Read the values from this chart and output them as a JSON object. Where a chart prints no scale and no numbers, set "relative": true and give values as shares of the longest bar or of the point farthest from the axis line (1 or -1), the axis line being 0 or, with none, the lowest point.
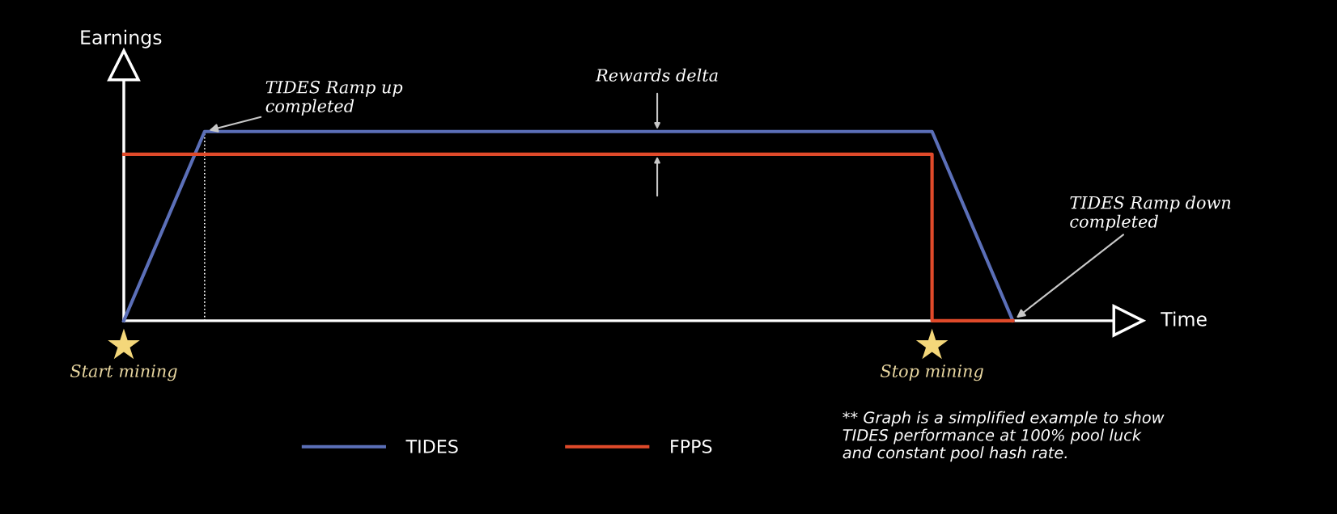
{
  "chart_data": {
    "type": "line",
    "relative": true,
    "ylabel": "Earnings",
    "categories": [
      null,
      null,
      null,
      null,
      null,
      null,
      null,
      null,
      null,
      null,
      null,
      null
    ],
    "series": [
      {
        "name": "TIDES",
        "color": "#5b6fb8",
        "values": [
          0,
          1,
          1,
          1,
          1,
          1,
          1,
          1,
          1,
          1,
          1,
          0
        ]
      },
      {
        "name": "FPPS",
        "color": "#e04a2a",
        "type": "step",
        "values": [
          0.88,
          0.88,
          0.88,
          0.88,
          0.88,
          0.88,
          0.88,
          0.88,
          0.88,
          0.88,
          0.88,
          0
        ]
      }
    ],
    "legend": "bottom",
    "line_style": "solid",
    "annotations": [
      "TIDES Ramp up\ncompleted",
      "Rewards delta",
      "TIDES Ramp down\ncompleted",
      "Start mining",
      "Stop mining",
      "Time",
      "** Graph is a simplified example to show\nTIDES performance at 100% pool luck\nand constant pool hash rate."
    ]
  }
}
